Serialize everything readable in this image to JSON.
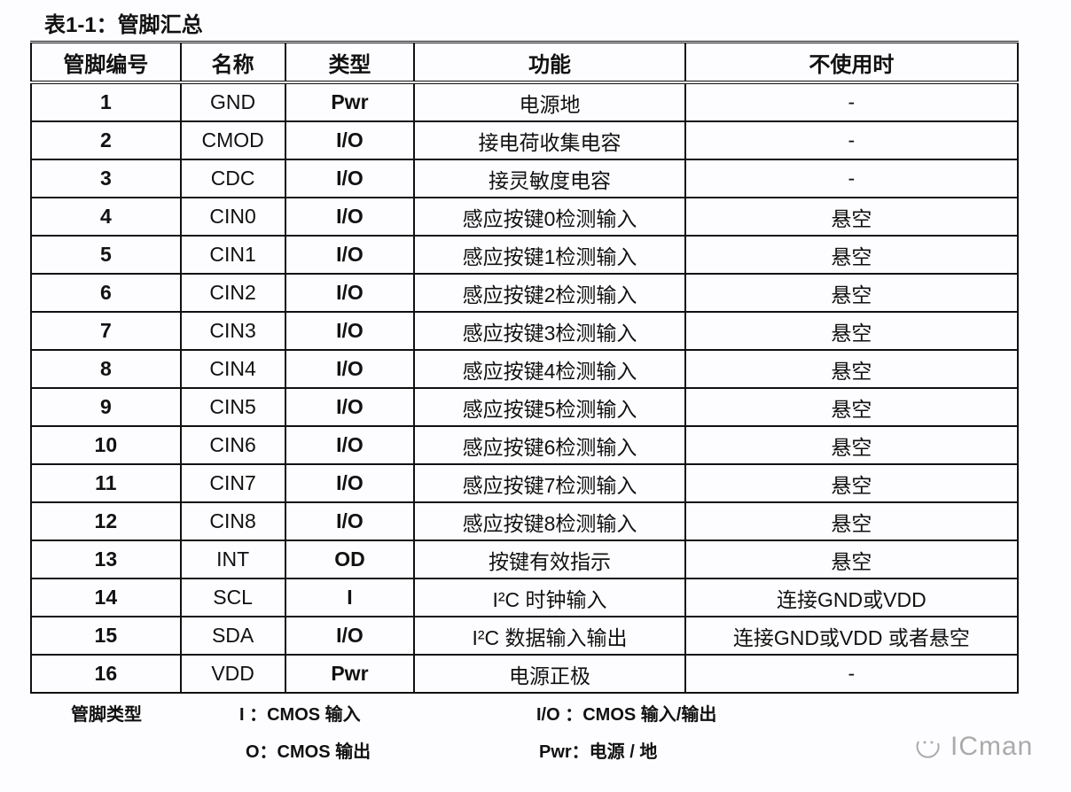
{
  "title": "表1-1：管脚汇总",
  "headers": [
    "管脚编号",
    "名称",
    "类型",
    "功能",
    "不使用时"
  ],
  "rows": [
    [
      "1",
      "GND",
      "Pwr",
      "电源地",
      "-"
    ],
    [
      "2",
      "CMOD",
      "I/O",
      "接电荷收集电容",
      "-"
    ],
    [
      "3",
      "CDC",
      "I/O",
      "接灵敏度电容",
      "-"
    ],
    [
      "4",
      "CIN0",
      "I/O",
      "感应按键0检测输入",
      "悬空"
    ],
    [
      "5",
      "CIN1",
      "I/O",
      "感应按键1检测输入",
      "悬空"
    ],
    [
      "6",
      "CIN2",
      "I/O",
      "感应按键2检测输入",
      "悬空"
    ],
    [
      "7",
      "CIN3",
      "I/O",
      "感应按键3检测输入",
      "悬空"
    ],
    [
      "8",
      "CIN4",
      "I/O",
      "感应按键4检测输入",
      "悬空"
    ],
    [
      "9",
      "CIN5",
      "I/O",
      "感应按键5检测输入",
      "悬空"
    ],
    [
      "10",
      "CIN6",
      "I/O",
      "感应按键6检测输入",
      "悬空"
    ],
    [
      "11",
      "CIN7",
      "I/O",
      "感应按键7检测输入",
      "悬空"
    ],
    [
      "12",
      "CIN8",
      "I/O",
      "感应按键8检测输入",
      "悬空"
    ],
    [
      "13",
      "INT",
      "OD",
      "按键有效指示",
      "悬空"
    ],
    [
      "14",
      "SCL",
      "I",
      "I²C  时钟输入",
      "连接GND或VDD"
    ],
    [
      "15",
      "SDA",
      "I/O",
      "I²C  数据输入输出",
      "连接GND或VDD  或者悬空"
    ],
    [
      "16",
      "VDD",
      "Pwr",
      "电源正极",
      "-"
    ]
  ],
  "legend": {
    "label": "管脚类型",
    "i": "I ：CMOS  输入",
    "io": "I/O  ：CMOS  输入/输出",
    "o": "O：CMOS  输出",
    "pwr": "Pwr：电源  /  地"
  },
  "watermark": "ICman"
}
